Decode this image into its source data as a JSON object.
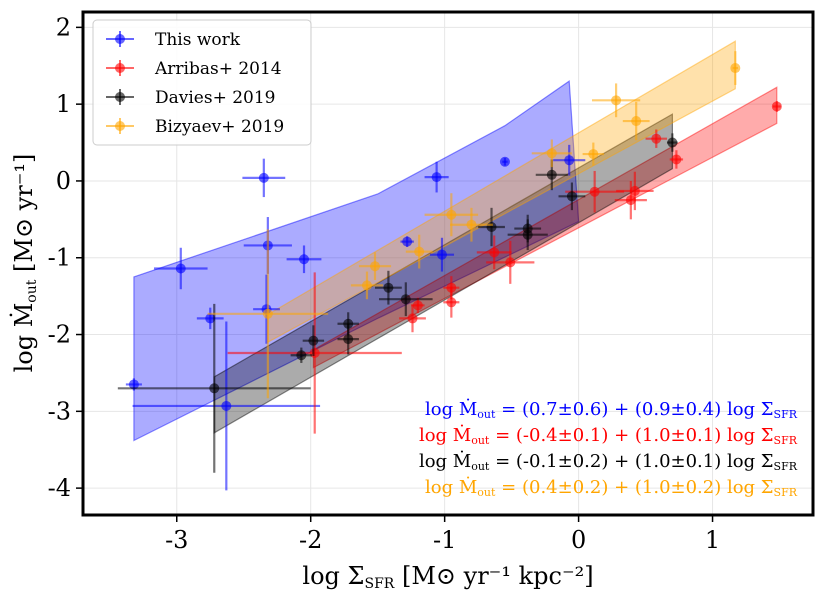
{
  "chart_data": {
    "type": "scatter",
    "xlabel": {
      "main": "log Σ",
      "sub": "SFR",
      "unit": " [M⊙ yr⁻¹ kpc⁻²]"
    },
    "ylabel": {
      "main": "log Ṁ",
      "sub": "out",
      "unit": " [M⊙ yr⁻¹]"
    },
    "xlim": [
      -3.7,
      1.75
    ],
    "ylim": [
      -4.35,
      2.2
    ],
    "xticks": [
      -3,
      -2,
      -1,
      0,
      1
    ],
    "yticks": [
      -4,
      -3,
      -2,
      -1,
      0,
      1,
      2
    ],
    "xtick_labels": [
      "-3",
      "-2",
      "-1",
      "0",
      "1"
    ],
    "ytick_labels": [
      "-4",
      "-3",
      "-2",
      "-1",
      "0",
      "1",
      "2"
    ],
    "grid": true,
    "legend": "top-left",
    "series": [
      {
        "name": "This work",
        "color": "#0000ff",
        "points": [
          {
            "x": -3.32,
            "y": -2.65,
            "xerr": 0.06,
            "yerr": 0.08
          },
          {
            "x": -2.97,
            "y": -1.14,
            "xerr": 0.2,
            "yerr": 0.27
          },
          {
            "x": -2.75,
            "y": -1.79,
            "xerr": 0.1,
            "yerr": 0.14
          },
          {
            "x": -2.63,
            "y": -2.93,
            "xerr": 0.7,
            "yerr": 1.1
          },
          {
            "x": -2.35,
            "y": 0.04,
            "xerr": 0.16,
            "yerr": 0.25
          },
          {
            "x": -2.32,
            "y": -0.84,
            "xerr": 0.18,
            "yerr": 0.37
          },
          {
            "x": -2.33,
            "y": -1.67,
            "xerr": 0.1,
            "yerr": 0.45
          },
          {
            "x": -2.05,
            "y": -1.02,
            "xerr": 0.13,
            "yerr": 0.18
          },
          {
            "x": -1.28,
            "y": -0.79,
            "xerr": 0.05,
            "yerr": 0.07
          },
          {
            "x": -1.06,
            "y": 0.05,
            "xerr": 0.09,
            "yerr": 0.2
          },
          {
            "x": -1.02,
            "y": -0.96,
            "xerr": 0.09,
            "yerr": 0.22
          },
          {
            "x": -0.55,
            "y": 0.25,
            "xerr": 0.02,
            "yerr": 0.05
          },
          {
            "x": -0.07,
            "y": 0.27,
            "xerr": 0.12,
            "yerr": 0.2
          }
        ],
        "band_lower": [
          [
            -3.32,
            -3.38
          ],
          [
            -1.5,
            -1.79
          ],
          [
            0.0,
            -0.53
          ]
        ],
        "band_upper": [
          [
            -3.32,
            -1.25
          ],
          [
            -1.5,
            -0.17
          ],
          [
            -0.55,
            0.72
          ],
          [
            -0.07,
            1.3
          ]
        ]
      },
      {
        "name": "Arribas+ 2014",
        "color": "#ff0000",
        "points": [
          {
            "x": -1.97,
            "y": -2.24,
            "xerr": 0.65,
            "yerr": 1.05
          },
          {
            "x": -1.24,
            "y": -1.79,
            "xerr": 0.1,
            "yerr": 0.18
          },
          {
            "x": -1.2,
            "y": -1.62,
            "xerr": 0.05,
            "yerr": 0.1
          },
          {
            "x": -0.95,
            "y": -1.39,
            "xerr": 0.06,
            "yerr": 0.15
          },
          {
            "x": -0.95,
            "y": -1.58,
            "xerr": 0.06,
            "yerr": 0.2
          },
          {
            "x": -0.63,
            "y": -0.93,
            "xerr": 0.13,
            "yerr": 0.22
          },
          {
            "x": -0.51,
            "y": -1.06,
            "xerr": 0.18,
            "yerr": 0.28
          },
          {
            "x": 0.12,
            "y": -0.14,
            "xerr": 0.22,
            "yerr": 0.27
          },
          {
            "x": 0.39,
            "y": -0.25,
            "xerr": 0.12,
            "yerr": 0.25
          },
          {
            "x": 0.42,
            "y": -0.13,
            "xerr": 0.14,
            "yerr": 0.25
          },
          {
            "x": 0.58,
            "y": 0.55,
            "xerr": 0.08,
            "yerr": 0.12
          },
          {
            "x": 0.73,
            "y": 0.28,
            "xerr": 0.05,
            "yerr": 0.12
          },
          {
            "x": 1.48,
            "y": 0.97,
            "xerr": 0.03,
            "yerr": 0.07
          }
        ],
        "band_lower": [
          [
            -1.98,
            -2.43
          ],
          [
            1.48,
            0.75
          ]
        ],
        "band_upper": [
          [
            -1.98,
            -2.2
          ],
          [
            1.48,
            1.22
          ]
        ]
      },
      {
        "name": "Davies+ 2019",
        "color": "#000000",
        "points": [
          {
            "x": -2.72,
            "y": -2.7,
            "xerr": 0.72,
            "yerr": 1.1
          },
          {
            "x": -2.07,
            "y": -2.27,
            "xerr": 0.08,
            "yerr": 0.1
          },
          {
            "x": -1.98,
            "y": -2.08,
            "xerr": 0.08,
            "yerr": 0.2
          },
          {
            "x": -1.72,
            "y": -1.86,
            "xerr": 0.08,
            "yerr": 0.15
          },
          {
            "x": -1.72,
            "y": -2.06,
            "xerr": 0.08,
            "yerr": 0.2
          },
          {
            "x": -1.42,
            "y": -1.39,
            "xerr": 0.1,
            "yerr": 0.22
          },
          {
            "x": -1.29,
            "y": -1.54,
            "xerr": 0.2,
            "yerr": 0.22
          },
          {
            "x": -0.65,
            "y": -0.6,
            "xerr": 0.1,
            "yerr": 0.25
          },
          {
            "x": -0.38,
            "y": -0.7,
            "xerr": 0.15,
            "yerr": 0.2
          },
          {
            "x": -0.38,
            "y": -0.62,
            "xerr": 0.1,
            "yerr": 0.18
          },
          {
            "x": -0.2,
            "y": 0.08,
            "xerr": 0.12,
            "yerr": 0.2
          },
          {
            "x": -0.05,
            "y": -0.2,
            "xerr": 0.1,
            "yerr": 0.18
          },
          {
            "x": 0.7,
            "y": 0.5,
            "xerr": 0.04,
            "yerr": 0.12
          }
        ],
        "band_lower": [
          [
            -2.72,
            -3.28
          ],
          [
            0.7,
            0.16
          ]
        ],
        "band_upper": [
          [
            -2.72,
            -2.55
          ],
          [
            0.7,
            0.87
          ]
        ]
      },
      {
        "name": "Bizyaev+ 2019",
        "color": "#ffa500",
        "points": [
          {
            "x": -2.32,
            "y": -1.73,
            "xerr": 0.45,
            "yerr": 1.1
          },
          {
            "x": -1.58,
            "y": -1.36,
            "xerr": 0.12,
            "yerr": 0.18
          },
          {
            "x": -1.52,
            "y": -1.11,
            "xerr": 0.12,
            "yerr": 0.18
          },
          {
            "x": -1.19,
            "y": -0.92,
            "xerr": 0.1,
            "yerr": 0.22
          },
          {
            "x": -0.95,
            "y": -0.44,
            "xerr": 0.2,
            "yerr": 0.28
          },
          {
            "x": -0.8,
            "y": -0.57,
            "xerr": 0.16,
            "yerr": 0.22
          },
          {
            "x": -0.2,
            "y": 0.36,
            "xerr": 0.15,
            "yerr": 0.18
          },
          {
            "x": 0.11,
            "y": 0.35,
            "xerr": 0.08,
            "yerr": 0.15
          },
          {
            "x": 0.28,
            "y": 1.05,
            "xerr": 0.18,
            "yerr": 0.22
          },
          {
            "x": 0.43,
            "y": 0.78,
            "xerr": 0.1,
            "yerr": 0.25
          },
          {
            "x": 1.17,
            "y": 1.47,
            "xerr": 0.02,
            "yerr": 0.22
          }
        ],
        "band_lower": [
          [
            -2.32,
            -2.1
          ],
          [
            1.17,
            1.2
          ]
        ],
        "band_upper": [
          [
            -2.32,
            -1.74
          ],
          [
            1.17,
            1.82
          ]
        ]
      }
    ],
    "annotations": [
      {
        "text": "log Ṁ",
        "sub": "out",
        "mid": " = (0.7±0.6) + (0.9±0.4) log Σ",
        "sub2": "SFR",
        "color": "#0000ff"
      },
      {
        "text": "log Ṁ",
        "sub": "out",
        "mid": " = (-0.4±0.1) + (1.0±0.1) log Σ",
        "sub2": "SFR",
        "color": "#ff0000"
      },
      {
        "text": "log Ṁ",
        "sub": "out",
        "mid": " = (-0.1±0.2) + (1.0±0.1) log Σ",
        "sub2": "SFR",
        "color": "#000000"
      },
      {
        "text": "log Ṁ",
        "sub": "out",
        "mid": " = (0.4±0.2) + (1.0±0.2) log Σ",
        "sub2": "SFR",
        "color": "#ffa500"
      }
    ]
  }
}
